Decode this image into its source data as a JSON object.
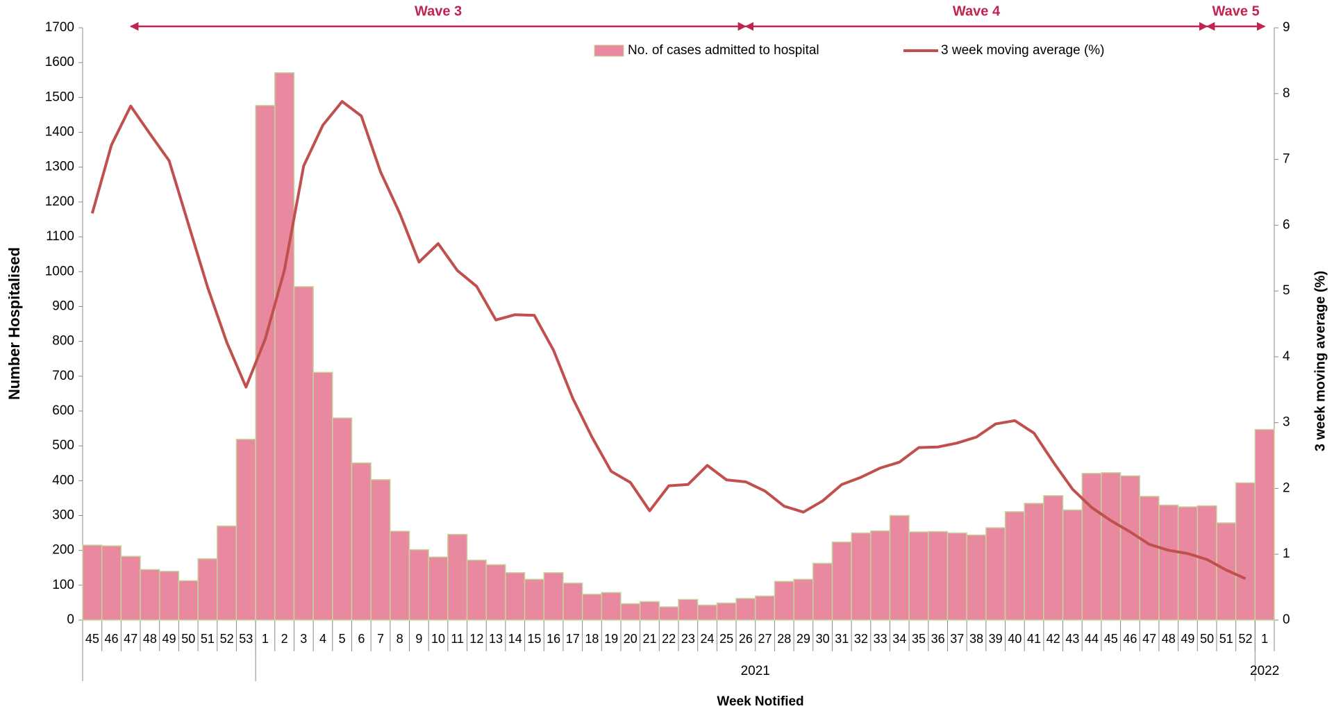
{
  "chart_data": {
    "type": "bar-line",
    "x_label": "Week Notified",
    "y_label": "Number Hospitalised",
    "y2_label": "3 week moving average (%)",
    "categories": [
      "45",
      "46",
      "47",
      "48",
      "49",
      "50",
      "51",
      "52",
      "53",
      "1",
      "2",
      "3",
      "4",
      "5",
      "6",
      "7",
      "8",
      "9",
      "10",
      "11",
      "12",
      "13",
      "14",
      "15",
      "16",
      "17",
      "18",
      "19",
      "20",
      "21",
      "22",
      "23",
      "24",
      "25",
      "26",
      "27",
      "28",
      "29",
      "30",
      "31",
      "32",
      "33",
      "34",
      "35",
      "36",
      "37",
      "38",
      "39",
      "40",
      "41",
      "42",
      "43",
      "44",
      "45",
      "46",
      "47",
      "48",
      "49",
      "50",
      "51",
      "52",
      "1"
    ],
    "x_groups": [
      {
        "label": "2021",
        "start": 9,
        "end": 60
      },
      {
        "label": "2022",
        "start": 61,
        "end": 61
      }
    ],
    "series": [
      {
        "name": "No. of cases admitted to hospital",
        "type": "bar",
        "color": "#e8899f",
        "edge_color": "#c3d69b",
        "values": [
          215,
          213,
          183,
          145,
          140,
          113,
          176,
          270,
          519,
          1477,
          1571,
          957,
          711,
          580,
          451,
          403,
          255,
          202,
          181,
          246,
          172,
          159,
          136,
          117,
          136,
          106,
          74,
          79,
          47,
          53,
          38,
          59,
          43,
          49,
          62,
          69,
          111,
          117,
          163,
          224,
          250,
          256,
          300,
          253,
          254,
          250,
          244,
          265,
          311,
          335,
          357,
          316,
          421,
          423,
          414,
          355,
          330,
          325,
          328,
          279,
          394,
          547
        ]
      },
      {
        "name": "3 week moving average (%)",
        "type": "line",
        "axis": "y2",
        "color": "#c0504d",
        "values": [
          6.18,
          7.22,
          7.81,
          7.39,
          6.98,
          6.02,
          5.06,
          4.22,
          3.54,
          4.27,
          5.32,
          6.9,
          7.52,
          7.88,
          7.66,
          6.81,
          6.18,
          5.44,
          5.72,
          5.31,
          5.07,
          4.56,
          4.64,
          4.63,
          4.1,
          3.37,
          2.78,
          2.26,
          2.09,
          1.66,
          2.04,
          2.06,
          2.35,
          2.13,
          2.1,
          1.96,
          1.73,
          1.64,
          1.81,
          2.06,
          2.17,
          2.31,
          2.4,
          2.62,
          2.63,
          2.69,
          2.78,
          2.98,
          3.03,
          2.84,
          2.4,
          1.99,
          1.71,
          1.51,
          1.34,
          1.15,
          1.06,
          1.01,
          0.92,
          0.76,
          0.63,
          null
        ]
      }
    ],
    "ylim": [
      0,
      1700
    ],
    "yticks": [
      0,
      100,
      200,
      300,
      400,
      500,
      600,
      700,
      800,
      900,
      1000,
      1100,
      1200,
      1300,
      1400,
      1500,
      1600,
      1700
    ],
    "y2lim": [
      0,
      9
    ],
    "y2ticks": [
      0,
      1,
      2,
      3,
      4,
      5,
      6,
      7,
      8,
      9
    ],
    "annotations": [
      {
        "text": "Wave 3",
        "from": 2,
        "to": 34
      },
      {
        "text": "Wave 4",
        "from": 34,
        "to": 58
      },
      {
        "text": "Wave 5",
        "from": 58,
        "to": 61
      }
    ],
    "annotation_color": "#c0244f",
    "legend": "top"
  }
}
